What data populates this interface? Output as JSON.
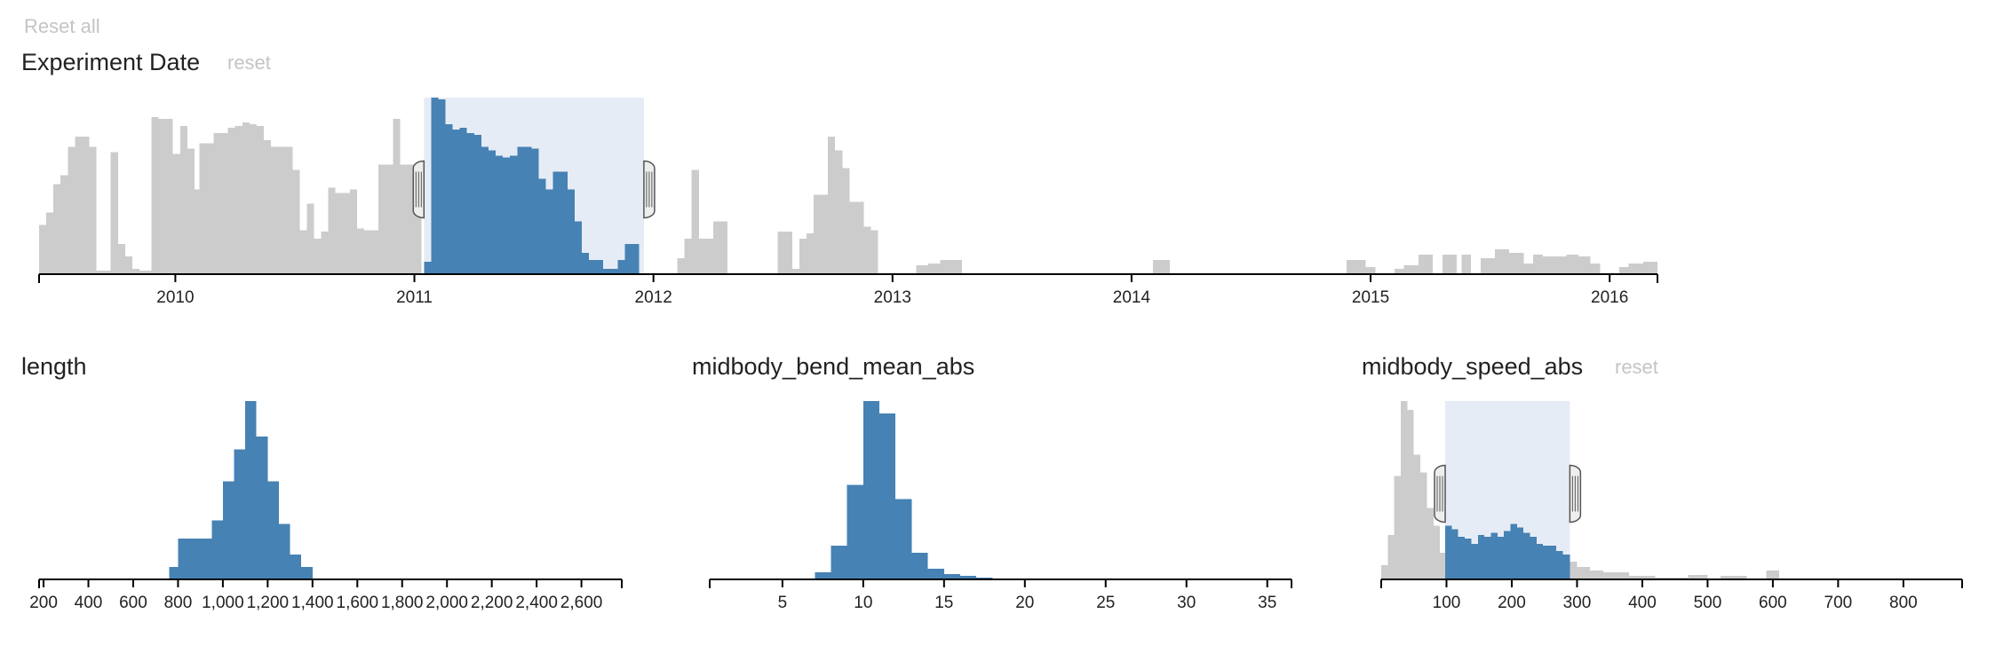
{
  "controls": {
    "reset_all_label": "Reset all",
    "reset_label": "reset"
  },
  "colors": {
    "selected": "#4682b4",
    "unselected": "#cccccc",
    "brush": "#e6ecf5",
    "axis": "#000000",
    "handle": "#555555"
  },
  "chart_data": [
    {
      "id": "experiment-date",
      "type": "bar",
      "title": "Experiment Date",
      "x_domain": [
        2009.43,
        2016.2
      ],
      "ticks": [
        {
          "value": 2010,
          "label": "2010"
        },
        {
          "value": 2011,
          "label": "2011"
        },
        {
          "value": 2012,
          "label": "2012"
        },
        {
          "value": 2013,
          "label": "2013"
        },
        {
          "value": 2014,
          "label": "2014"
        },
        {
          "value": 2015,
          "label": "2015"
        },
        {
          "value": 2016,
          "label": "2016"
        }
      ],
      "brush": [
        2011.04,
        2011.96
      ],
      "ylim": [
        0,
        100
      ],
      "bins": [
        [
          2009.43,
          2009.46,
          28
        ],
        [
          2009.46,
          2009.49,
          35
        ],
        [
          2009.49,
          2009.52,
          51
        ],
        [
          2009.52,
          2009.55,
          56
        ],
        [
          2009.55,
          2009.58,
          72
        ],
        [
          2009.58,
          2009.61,
          78
        ],
        [
          2009.61,
          2009.64,
          78
        ],
        [
          2009.64,
          2009.67,
          72
        ],
        [
          2009.67,
          2009.7,
          2
        ],
        [
          2009.7,
          2009.73,
          2
        ],
        [
          2009.73,
          2009.76,
          69
        ],
        [
          2009.76,
          2009.79,
          17
        ],
        [
          2009.79,
          2009.82,
          10
        ],
        [
          2009.82,
          2009.85,
          3
        ],
        [
          2009.85,
          2009.88,
          2
        ],
        [
          2009.88,
          2009.9,
          2
        ],
        [
          2009.9,
          2009.93,
          89
        ],
        [
          2009.93,
          2009.96,
          88
        ],
        [
          2009.96,
          2009.99,
          88
        ],
        [
          2009.99,
          2010.02,
          68
        ],
        [
          2010.02,
          2010.05,
          84
        ],
        [
          2010.05,
          2010.08,
          71
        ],
        [
          2010.08,
          2010.1,
          48
        ],
        [
          2010.1,
          2010.13,
          74
        ],
        [
          2010.13,
          2010.16,
          74
        ],
        [
          2010.16,
          2010.19,
          80
        ],
        [
          2010.19,
          2010.22,
          80
        ],
        [
          2010.22,
          2010.25,
          83
        ],
        [
          2010.25,
          2010.28,
          84
        ],
        [
          2010.28,
          2010.31,
          86
        ],
        [
          2010.31,
          2010.34,
          85
        ],
        [
          2010.34,
          2010.37,
          84
        ],
        [
          2010.37,
          2010.4,
          76
        ],
        [
          2010.4,
          2010.43,
          72
        ],
        [
          2010.43,
          2010.46,
          72
        ],
        [
          2010.46,
          2010.49,
          72
        ],
        [
          2010.49,
          2010.52,
          59
        ],
        [
          2010.52,
          2010.55,
          25
        ],
        [
          2010.55,
          2010.58,
          40
        ],
        [
          2010.58,
          2010.61,
          20
        ],
        [
          2010.61,
          2010.64,
          24
        ],
        [
          2010.64,
          2010.67,
          49
        ],
        [
          2010.67,
          2010.7,
          46
        ],
        [
          2010.7,
          2010.73,
          46
        ],
        [
          2010.73,
          2010.76,
          48
        ],
        [
          2010.76,
          2010.79,
          26
        ],
        [
          2010.79,
          2010.82,
          25
        ],
        [
          2010.82,
          2010.85,
          25
        ],
        [
          2010.85,
          2010.88,
          62
        ],
        [
          2010.88,
          2010.91,
          62
        ],
        [
          2010.91,
          2010.94,
          88
        ],
        [
          2010.94,
          2010.97,
          62
        ],
        [
          2010.97,
          2011.0,
          62
        ],
        [
          2011.0,
          2011.03,
          62
        ],
        [
          2011.04,
          2011.07,
          7
        ],
        [
          2011.07,
          2011.1,
          100
        ],
        [
          2011.1,
          2011.13,
          99
        ],
        [
          2011.13,
          2011.16,
          85
        ],
        [
          2011.16,
          2011.19,
          82
        ],
        [
          2011.19,
          2011.22,
          83
        ],
        [
          2011.22,
          2011.25,
          80
        ],
        [
          2011.25,
          2011.28,
          79
        ],
        [
          2011.28,
          2011.31,
          72
        ],
        [
          2011.31,
          2011.34,
          70
        ],
        [
          2011.34,
          2011.37,
          67
        ],
        [
          2011.37,
          2011.4,
          66
        ],
        [
          2011.4,
          2011.43,
          67
        ],
        [
          2011.43,
          2011.46,
          72
        ],
        [
          2011.46,
          2011.49,
          72
        ],
        [
          2011.49,
          2011.52,
          71
        ],
        [
          2011.52,
          2011.55,
          54
        ],
        [
          2011.55,
          2011.58,
          48
        ],
        [
          2011.58,
          2011.61,
          58
        ],
        [
          2011.61,
          2011.64,
          58
        ],
        [
          2011.64,
          2011.67,
          48
        ],
        [
          2011.67,
          2011.7,
          30
        ],
        [
          2011.7,
          2011.73,
          12
        ],
        [
          2011.73,
          2011.76,
          8
        ],
        [
          2011.76,
          2011.79,
          8
        ],
        [
          2011.79,
          2011.82,
          3
        ],
        [
          2011.82,
          2011.85,
          3
        ],
        [
          2011.85,
          2011.88,
          8
        ],
        [
          2011.88,
          2011.91,
          17
        ],
        [
          2011.91,
          2011.94,
          17
        ],
        [
          2012.1,
          2012.13,
          9
        ],
        [
          2012.13,
          2012.16,
          20
        ],
        [
          2012.16,
          2012.19,
          59
        ],
        [
          2012.19,
          2012.22,
          20
        ],
        [
          2012.22,
          2012.25,
          20
        ],
        [
          2012.25,
          2012.28,
          30
        ],
        [
          2012.28,
          2012.31,
          30
        ],
        [
          2012.52,
          2012.55,
          24
        ],
        [
          2012.55,
          2012.58,
          24
        ],
        [
          2012.58,
          2012.61,
          3
        ],
        [
          2012.61,
          2012.64,
          20
        ],
        [
          2012.64,
          2012.67,
          23
        ],
        [
          2012.67,
          2012.7,
          45
        ],
        [
          2012.7,
          2012.73,
          45
        ],
        [
          2012.73,
          2012.76,
          78
        ],
        [
          2012.76,
          2012.79,
          70
        ],
        [
          2012.79,
          2012.82,
          60
        ],
        [
          2012.82,
          2012.85,
          41
        ],
        [
          2012.85,
          2012.88,
          41
        ],
        [
          2012.88,
          2012.91,
          27
        ],
        [
          2012.91,
          2012.94,
          25
        ],
        [
          2013.1,
          2013.15,
          5
        ],
        [
          2013.15,
          2013.2,
          6
        ],
        [
          2013.2,
          2013.29,
          8
        ],
        [
          2014.09,
          2014.16,
          8
        ],
        [
          2014.9,
          2014.98,
          8
        ],
        [
          2014.98,
          2015.02,
          4
        ],
        [
          2015.1,
          2015.14,
          3
        ],
        [
          2015.14,
          2015.2,
          5
        ],
        [
          2015.2,
          2015.26,
          11
        ],
        [
          2015.3,
          2015.36,
          11
        ],
        [
          2015.38,
          2015.42,
          11
        ],
        [
          2015.46,
          2015.52,
          9
        ],
        [
          2015.52,
          2015.58,
          14
        ],
        [
          2015.58,
          2015.64,
          12
        ],
        [
          2015.64,
          2015.68,
          6
        ],
        [
          2015.68,
          2015.72,
          11
        ],
        [
          2015.72,
          2015.76,
          10
        ],
        [
          2015.76,
          2015.82,
          10
        ],
        [
          2015.82,
          2015.87,
          11
        ],
        [
          2015.87,
          2015.92,
          10
        ],
        [
          2015.92,
          2015.96,
          6
        ],
        [
          2016.04,
          2016.08,
          4
        ],
        [
          2016.08,
          2016.14,
          6
        ],
        [
          2016.14,
          2016.2,
          7
        ]
      ]
    },
    {
      "id": "length",
      "type": "bar",
      "title": "length",
      "x_domain": [
        180,
        2780
      ],
      "ticks": [
        {
          "value": 200,
          "label": "200"
        },
        {
          "value": 400,
          "label": "400"
        },
        {
          "value": 600,
          "label": "600"
        },
        {
          "value": 800,
          "label": "800"
        },
        {
          "value": 1000,
          "label": "1,000"
        },
        {
          "value": 1200,
          "label": "1,200"
        },
        {
          "value": 1400,
          "label": "1,400"
        },
        {
          "value": 1600,
          "label": "1,600"
        },
        {
          "value": 1800,
          "label": "1,800"
        },
        {
          "value": 2000,
          "label": "2,000"
        },
        {
          "value": 2200,
          "label": "2,200"
        },
        {
          "value": 2400,
          "label": "2,400"
        },
        {
          "value": 2600,
          "label": "2,600"
        }
      ],
      "brush": null,
      "ylim": [
        0,
        100
      ],
      "bins": [
        [
          760,
          800,
          7
        ],
        [
          800,
          850,
          23
        ],
        [
          850,
          900,
          23
        ],
        [
          900,
          950,
          23
        ],
        [
          950,
          1000,
          33
        ],
        [
          1000,
          1050,
          55
        ],
        [
          1050,
          1100,
          73
        ],
        [
          1100,
          1150,
          100
        ],
        [
          1150,
          1200,
          80
        ],
        [
          1200,
          1250,
          55
        ],
        [
          1250,
          1300,
          31
        ],
        [
          1300,
          1350,
          14
        ],
        [
          1350,
          1400,
          7
        ]
      ]
    },
    {
      "id": "midbody-bend-mean-abs",
      "type": "bar",
      "title": "midbody_bend_mean_abs",
      "x_domain": [
        0.5,
        36.5
      ],
      "ticks": [
        {
          "value": 5,
          "label": "5"
        },
        {
          "value": 10,
          "label": "10"
        },
        {
          "value": 15,
          "label": "15"
        },
        {
          "value": 20,
          "label": "20"
        },
        {
          "value": 25,
          "label": "25"
        },
        {
          "value": 30,
          "label": "30"
        },
        {
          "value": 35,
          "label": "35"
        }
      ],
      "brush": null,
      "ylim": [
        0,
        100
      ],
      "bins": [
        [
          6,
          7,
          0.5
        ],
        [
          7,
          8,
          4
        ],
        [
          8,
          9,
          19
        ],
        [
          9,
          10,
          53
        ],
        [
          10,
          11,
          100
        ],
        [
          11,
          12,
          93
        ],
        [
          12,
          13,
          45
        ],
        [
          13,
          14,
          15
        ],
        [
          14,
          15,
          6
        ],
        [
          15,
          16,
          3
        ],
        [
          16,
          17,
          2
        ],
        [
          17,
          18,
          1
        ],
        [
          18,
          20,
          0.6
        ],
        [
          20,
          25,
          0.4
        ],
        [
          25,
          31,
          0.3
        ]
      ]
    },
    {
      "id": "midbody-speed-abs",
      "type": "bar",
      "title": "midbody_speed_abs",
      "x_domain": [
        0,
        890
      ],
      "ticks": [
        {
          "value": 100,
          "label": "100"
        },
        {
          "value": 200,
          "label": "200"
        },
        {
          "value": 300,
          "label": "300"
        },
        {
          "value": 400,
          "label": "400"
        },
        {
          "value": 500,
          "label": "500"
        },
        {
          "value": 600,
          "label": "600"
        },
        {
          "value": 700,
          "label": "700"
        },
        {
          "value": 800,
          "label": "800"
        }
      ],
      "brush": [
        98,
        289
      ],
      "ylim": [
        0,
        100
      ],
      "bins": [
        [
          0,
          10,
          8
        ],
        [
          10,
          20,
          25
        ],
        [
          20,
          30,
          58
        ],
        [
          30,
          40,
          100
        ],
        [
          40,
          50,
          95
        ],
        [
          50,
          60,
          70
        ],
        [
          60,
          70,
          60
        ],
        [
          70,
          80,
          40
        ],
        [
          80,
          90,
          30
        ],
        [
          90,
          98,
          15
        ],
        [
          98,
          108,
          30
        ],
        [
          108,
          118,
          28
        ],
        [
          118,
          128,
          24
        ],
        [
          128,
          138,
          23
        ],
        [
          138,
          148,
          20
        ],
        [
          148,
          158,
          25
        ],
        [
          158,
          168,
          24
        ],
        [
          168,
          178,
          26
        ],
        [
          178,
          188,
          24
        ],
        [
          188,
          198,
          27
        ],
        [
          198,
          208,
          31
        ],
        [
          208,
          218,
          29
        ],
        [
          218,
          228,
          26
        ],
        [
          228,
          238,
          24
        ],
        [
          238,
          248,
          20
        ],
        [
          248,
          258,
          19
        ],
        [
          258,
          268,
          19
        ],
        [
          268,
          278,
          16
        ],
        [
          278,
          289,
          14
        ],
        [
          289,
          300,
          10
        ],
        [
          300,
          320,
          7
        ],
        [
          320,
          340,
          5
        ],
        [
          340,
          360,
          4
        ],
        [
          360,
          380,
          4
        ],
        [
          380,
          400,
          2
        ],
        [
          400,
          420,
          2
        ],
        [
          420,
          440,
          1
        ],
        [
          440,
          470,
          1
        ],
        [
          470,
          500,
          2.5
        ],
        [
          520,
          560,
          2
        ],
        [
          590,
          610,
          5
        ]
      ]
    }
  ]
}
